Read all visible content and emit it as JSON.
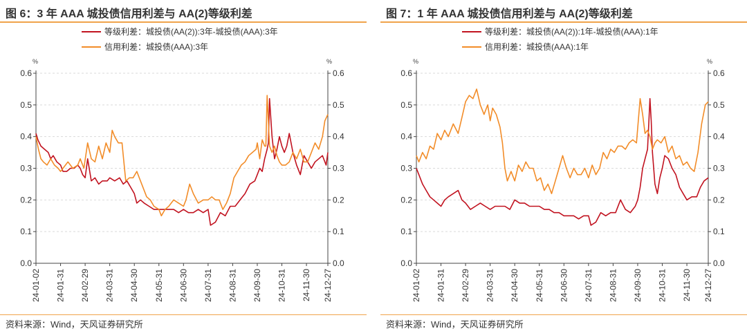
{
  "source_text": "资料来源：Wind，天风证券研究所",
  "charts_title": {
    "left": "图 6：3 年 AAA 城投债信用利差与 AA(2)等级利差",
    "right": "图 7：1 年 AAA 城投债信用利差与 AA(2)等级利差"
  },
  "colors": {
    "grade": "#c1121f",
    "credit": "#f28c28"
  },
  "chart_data": [
    {
      "type": "line",
      "title": "图 6：3 年 AAA 城投债信用利差与 AA(2)等级利差",
      "ylabel_left": "%",
      "ylabel_right": "%",
      "ylim": [
        0,
        0.6
      ],
      "yticks": [
        "0.0",
        "0.1",
        "0.2",
        "0.3",
        "0.4",
        "0.5",
        "0.6"
      ],
      "x_ticks": [
        "24-01-02",
        "24-01-31",
        "24-02-29",
        "24-03-31",
        "24-04-30",
        "24-05-31",
        "24-06-30",
        "24-07-31",
        "24-08-31",
        "24-09-30",
        "24-10-31",
        "24-11-30",
        "24-12-27"
      ],
      "x_tick_pos": [
        0,
        1,
        2,
        3,
        4,
        5,
        6,
        7,
        8,
        9,
        10,
        11,
        11.87
      ],
      "grid": true,
      "series": [
        {
          "name": "等级利差：城投债(AA(2)):3年-城投债(AAA):3年",
          "color": "#c1121f",
          "x": [
            0,
            0.08,
            0.2,
            0.35,
            0.5,
            0.6,
            0.7,
            0.85,
            1.0,
            1.1,
            1.25,
            1.4,
            1.55,
            1.7,
            1.8,
            1.9,
            2.0,
            2.1,
            2.25,
            2.4,
            2.55,
            2.7,
            2.9,
            3.0,
            3.2,
            3.4,
            3.55,
            3.7,
            3.85,
            4.0,
            4.1,
            4.25,
            4.4,
            4.6,
            4.8,
            5.0,
            5.2,
            5.4,
            5.6,
            5.8,
            6.0,
            6.2,
            6.4,
            6.6,
            6.8,
            7.0,
            7.1,
            7.3,
            7.5,
            7.7,
            7.9,
            8.1,
            8.3,
            8.5,
            8.7,
            8.9,
            9.0,
            9.1,
            9.2,
            9.3,
            9.4,
            9.45,
            9.5,
            9.6,
            9.7,
            9.8,
            9.9,
            10.0,
            10.1,
            10.2,
            10.3,
            10.45,
            10.6,
            10.75,
            10.9,
            11.05,
            11.2,
            11.35,
            11.5,
            11.65,
            11.8,
            11.87
          ],
          "y": [
            0.41,
            0.39,
            0.37,
            0.36,
            0.35,
            0.33,
            0.34,
            0.32,
            0.31,
            0.29,
            0.29,
            0.3,
            0.3,
            0.31,
            0.3,
            0.28,
            0.27,
            0.33,
            0.26,
            0.27,
            0.25,
            0.26,
            0.26,
            0.27,
            0.26,
            0.27,
            0.25,
            0.26,
            0.24,
            0.22,
            0.19,
            0.2,
            0.19,
            0.18,
            0.17,
            0.17,
            0.17,
            0.17,
            0.17,
            0.16,
            0.17,
            0.16,
            0.16,
            0.17,
            0.16,
            0.17,
            0.12,
            0.13,
            0.16,
            0.15,
            0.18,
            0.18,
            0.2,
            0.22,
            0.25,
            0.26,
            0.28,
            0.3,
            0.29,
            0.33,
            0.36,
            0.38,
            0.52,
            0.4,
            0.33,
            0.36,
            0.4,
            0.37,
            0.35,
            0.37,
            0.41,
            0.35,
            0.31,
            0.28,
            0.34,
            0.32,
            0.3,
            0.32,
            0.33,
            0.34,
            0.31,
            0.35
          ]
        },
        {
          "name": "信用利差：城投债(AAA):3年",
          "color": "#f28c28",
          "x": [
            0,
            0.1,
            0.2,
            0.3,
            0.45,
            0.6,
            0.75,
            0.9,
            1.0,
            1.1,
            1.3,
            1.5,
            1.7,
            1.8,
            1.95,
            2.1,
            2.25,
            2.4,
            2.55,
            2.7,
            2.85,
            3.0,
            3.1,
            3.2,
            3.35,
            3.5,
            3.65,
            3.8,
            3.95,
            4.1,
            4.3,
            4.5,
            4.65,
            4.8,
            5.0,
            5.1,
            5.25,
            5.4,
            5.6,
            5.8,
            6.0,
            6.1,
            6.25,
            6.4,
            6.6,
            6.8,
            7.0,
            7.15,
            7.3,
            7.45,
            7.6,
            7.75,
            7.9,
            8.05,
            8.2,
            8.35,
            8.5,
            8.65,
            8.8,
            8.95,
            9.0,
            9.1,
            9.2,
            9.3,
            9.35,
            9.4,
            9.5,
            9.6,
            9.7,
            9.8,
            9.9,
            10.0,
            10.15,
            10.3,
            10.45,
            10.6,
            10.75,
            10.9,
            11.05,
            11.2,
            11.35,
            11.5,
            11.65,
            11.75,
            11.87
          ],
          "y": [
            0.4,
            0.36,
            0.33,
            0.32,
            0.31,
            0.33,
            0.31,
            0.3,
            0.29,
            0.3,
            0.32,
            0.3,
            0.31,
            0.33,
            0.3,
            0.38,
            0.33,
            0.32,
            0.37,
            0.33,
            0.38,
            0.35,
            0.42,
            0.4,
            0.38,
            0.38,
            0.26,
            0.27,
            0.27,
            0.29,
            0.25,
            0.21,
            0.2,
            0.18,
            0.17,
            0.15,
            0.17,
            0.18,
            0.2,
            0.19,
            0.18,
            0.2,
            0.25,
            0.22,
            0.19,
            0.2,
            0.2,
            0.21,
            0.2,
            0.2,
            0.17,
            0.19,
            0.22,
            0.27,
            0.29,
            0.31,
            0.32,
            0.34,
            0.35,
            0.36,
            0.38,
            0.33,
            0.39,
            0.37,
            0.37,
            0.53,
            0.37,
            0.35,
            0.37,
            0.34,
            0.32,
            0.31,
            0.31,
            0.32,
            0.35,
            0.33,
            0.36,
            0.32,
            0.32,
            0.35,
            0.38,
            0.36,
            0.4,
            0.45,
            0.47
          ]
        }
      ]
    },
    {
      "type": "line",
      "title": "图 7：1 年 AAA 城投债信用利差与 AA(2)等级利差",
      "ylabel_left": "%",
      "ylabel_right": "%",
      "ylim": [
        0,
        0.6
      ],
      "yticks": [
        "0.0",
        "0.1",
        "0.2",
        "0.3",
        "0.4",
        "0.5",
        "0.6"
      ],
      "x_ticks": [
        "24-01-02",
        "24-01-31",
        "24-02-29",
        "24-03-31",
        "24-04-30",
        "24-05-31",
        "24-06-30",
        "24-07-31",
        "24-08-31",
        "24-09-30",
        "24-10-31",
        "24-11-30",
        "24-12-27"
      ],
      "x_tick_pos": [
        0,
        1,
        2,
        3,
        4,
        5,
        6,
        7,
        8,
        9,
        10,
        11,
        11.87
      ],
      "grid": true,
      "series": [
        {
          "name": "等级利差：城投债(AA(2)):1年-城投债(AAA):1年",
          "color": "#c1121f",
          "x": [
            0,
            0.1,
            0.25,
            0.4,
            0.55,
            0.7,
            0.85,
            1.0,
            1.15,
            1.3,
            1.5,
            1.7,
            1.85,
            2.0,
            2.2,
            2.4,
            2.6,
            2.8,
            3.0,
            3.2,
            3.4,
            3.6,
            3.8,
            4.0,
            4.2,
            4.4,
            4.6,
            4.8,
            5.0,
            5.2,
            5.4,
            5.6,
            5.8,
            6.0,
            6.2,
            6.4,
            6.6,
            6.8,
            7.0,
            7.1,
            7.3,
            7.5,
            7.7,
            7.9,
            8.1,
            8.3,
            8.5,
            8.7,
            8.9,
            9.0,
            9.1,
            9.2,
            9.3,
            9.4,
            9.5,
            9.55,
            9.6,
            9.7,
            9.8,
            9.9,
            10.0,
            10.1,
            10.25,
            10.4,
            10.55,
            10.7,
            10.85,
            11.0,
            11.2,
            11.4,
            11.55,
            11.7,
            11.87
          ],
          "y": [
            0.3,
            0.28,
            0.25,
            0.23,
            0.21,
            0.2,
            0.19,
            0.18,
            0.2,
            0.21,
            0.22,
            0.23,
            0.2,
            0.19,
            0.17,
            0.18,
            0.19,
            0.18,
            0.17,
            0.18,
            0.18,
            0.18,
            0.17,
            0.2,
            0.19,
            0.19,
            0.18,
            0.18,
            0.18,
            0.17,
            0.17,
            0.16,
            0.16,
            0.15,
            0.15,
            0.15,
            0.14,
            0.15,
            0.15,
            0.12,
            0.13,
            0.16,
            0.15,
            0.16,
            0.16,
            0.2,
            0.17,
            0.16,
            0.18,
            0.2,
            0.24,
            0.3,
            0.33,
            0.36,
            0.52,
            0.45,
            0.35,
            0.25,
            0.22,
            0.27,
            0.3,
            0.34,
            0.33,
            0.3,
            0.28,
            0.24,
            0.22,
            0.2,
            0.21,
            0.21,
            0.24,
            0.26,
            0.27
          ]
        },
        {
          "name": "信用利差：城投债(AAA):1年",
          "color": "#f28c28",
          "x": [
            0,
            0.1,
            0.25,
            0.4,
            0.55,
            0.7,
            0.85,
            1.0,
            1.15,
            1.3,
            1.5,
            1.7,
            1.85,
            2.0,
            2.15,
            2.3,
            2.45,
            2.6,
            2.75,
            2.9,
            3.0,
            3.1,
            3.25,
            3.4,
            3.5,
            3.6,
            3.7,
            3.85,
            4.0,
            4.15,
            4.3,
            4.45,
            4.6,
            4.75,
            4.9,
            5.05,
            5.2,
            5.35,
            5.5,
            5.65,
            5.8,
            5.95,
            6.1,
            6.25,
            6.4,
            6.55,
            6.7,
            6.85,
            7.0,
            7.15,
            7.3,
            7.45,
            7.6,
            7.75,
            7.9,
            8.05,
            8.2,
            8.35,
            8.5,
            8.65,
            8.8,
            8.95,
            9.1,
            9.2,
            9.3,
            9.4,
            9.5,
            9.6,
            9.7,
            9.8,
            9.95,
            10.1,
            10.25,
            10.4,
            10.55,
            10.7,
            10.85,
            11.0,
            11.15,
            11.3,
            11.45,
            11.6,
            11.75,
            11.87
          ],
          "y": [
            0.34,
            0.32,
            0.35,
            0.33,
            0.37,
            0.36,
            0.41,
            0.39,
            0.42,
            0.4,
            0.44,
            0.41,
            0.46,
            0.51,
            0.53,
            0.52,
            0.55,
            0.5,
            0.47,
            0.5,
            0.45,
            0.49,
            0.47,
            0.43,
            0.38,
            0.3,
            0.26,
            0.29,
            0.26,
            0.31,
            0.29,
            0.32,
            0.3,
            0.3,
            0.26,
            0.27,
            0.23,
            0.25,
            0.22,
            0.26,
            0.3,
            0.34,
            0.3,
            0.27,
            0.3,
            0.28,
            0.28,
            0.3,
            0.27,
            0.31,
            0.28,
            0.3,
            0.35,
            0.33,
            0.36,
            0.35,
            0.37,
            0.37,
            0.36,
            0.38,
            0.39,
            0.38,
            0.52,
            0.47,
            0.41,
            0.42,
            0.4,
            0.36,
            0.38,
            0.39,
            0.38,
            0.4,
            0.35,
            0.37,
            0.33,
            0.34,
            0.31,
            0.32,
            0.3,
            0.29,
            0.35,
            0.44,
            0.5,
            0.51
          ]
        }
      ]
    }
  ]
}
